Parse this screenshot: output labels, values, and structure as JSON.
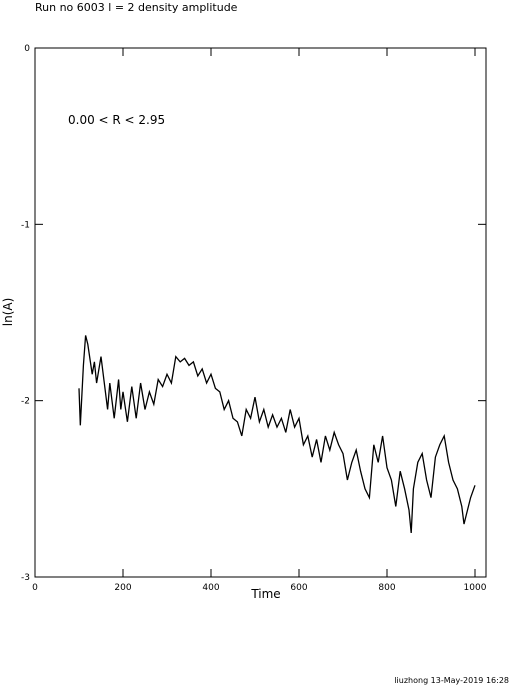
{
  "chart_data": {
    "type": "line",
    "title": "Run no  6003  l =  2  density amplitude",
    "annotation": "0.00 < R <  2.95",
    "x_label": "Time",
    "y_label": "ln(A)",
    "footer": "liuzhong 13-May-2019 16:28",
    "xlim": [
      0,
      1025
    ],
    "ylim": [
      -3,
      0
    ],
    "xticks": [
      0,
      200,
      400,
      600,
      800,
      1000
    ],
    "yticks": [
      -3,
      -2,
      -1,
      0
    ],
    "color": "#000000",
    "x": [
      100,
      103,
      110,
      115,
      120,
      130,
      135,
      140,
      150,
      160,
      165,
      170,
      180,
      190,
      195,
      200,
      210,
      220,
      230,
      240,
      250,
      260,
      270,
      280,
      290,
      300,
      310,
      320,
      330,
      340,
      350,
      360,
      370,
      380,
      390,
      400,
      410,
      420,
      430,
      440,
      450,
      460,
      470,
      480,
      490,
      500,
      510,
      520,
      530,
      540,
      550,
      560,
      570,
      580,
      590,
      600,
      610,
      620,
      630,
      640,
      650,
      660,
      670,
      680,
      690,
      700,
      710,
      720,
      730,
      740,
      750,
      760,
      770,
      780,
      790,
      800,
      810,
      820,
      830,
      840,
      850,
      855,
      860,
      870,
      880,
      890,
      900,
      910,
      920,
      930,
      940,
      950,
      960,
      970,
      975,
      980,
      990,
      1000
    ],
    "values": [
      -1.93,
      -2.14,
      -1.8,
      -1.63,
      -1.68,
      -1.85,
      -1.78,
      -1.9,
      -1.75,
      -1.95,
      -2.05,
      -1.9,
      -2.1,
      -1.88,
      -2.05,
      -1.95,
      -2.12,
      -1.92,
      -2.1,
      -1.9,
      -2.05,
      -1.95,
      -2.02,
      -1.88,
      -1.92,
      -1.85,
      -1.9,
      -1.75,
      -1.78,
      -1.76,
      -1.8,
      -1.78,
      -1.86,
      -1.82,
      -1.9,
      -1.85,
      -1.93,
      -1.95,
      -2.05,
      -2.0,
      -2.1,
      -2.12,
      -2.2,
      -2.05,
      -2.1,
      -1.98,
      -2.12,
      -2.05,
      -2.15,
      -2.08,
      -2.15,
      -2.1,
      -2.18,
      -2.05,
      -2.15,
      -2.1,
      -2.25,
      -2.2,
      -2.32,
      -2.22,
      -2.35,
      -2.2,
      -2.28,
      -2.18,
      -2.25,
      -2.3,
      -2.45,
      -2.35,
      -2.28,
      -2.4,
      -2.5,
      -2.55,
      -2.25,
      -2.35,
      -2.2,
      -2.38,
      -2.45,
      -2.6,
      -2.4,
      -2.5,
      -2.62,
      -2.75,
      -2.5,
      -2.35,
      -2.3,
      -2.45,
      -2.55,
      -2.32,
      -2.25,
      -2.2,
      -2.35,
      -2.45,
      -2.5,
      -2.6,
      -2.7,
      -2.65,
      -2.55,
      -2.48
    ]
  }
}
